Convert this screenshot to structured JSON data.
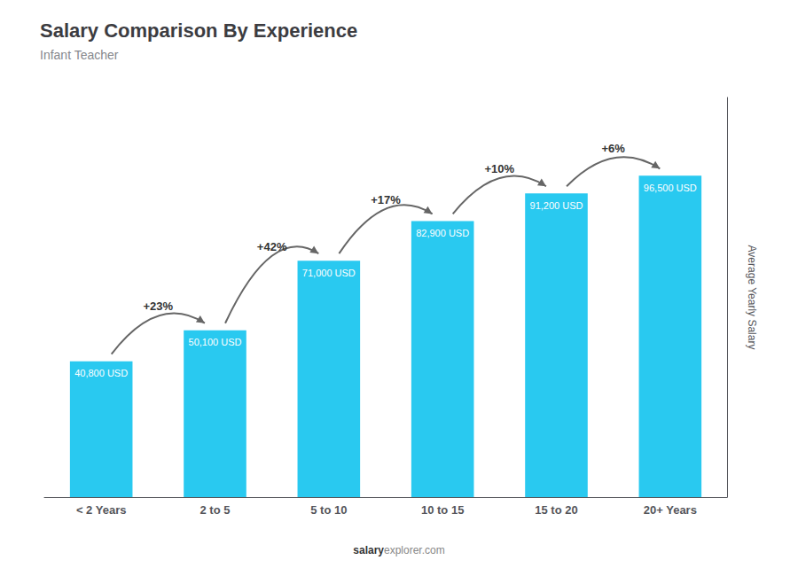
{
  "chart_data": {
    "type": "bar",
    "title": "Salary Comparison By Experience",
    "subtitle": "Infant Teacher",
    "categories": [
      "< 2 Years",
      "2 to 5",
      "5 to 10",
      "10 to 15",
      "15 to 20",
      "20+ Years"
    ],
    "values": [
      40800,
      50100,
      71000,
      82900,
      91200,
      96500
    ],
    "value_labels": [
      "40,800 USD",
      "50,100 USD",
      "71,000 USD",
      "82,900 USD",
      "91,200 USD",
      "96,500 USD"
    ],
    "data_labels": true,
    "annotations": [
      "+23%",
      "+42%",
      "+17%",
      "+10%",
      "+6%"
    ],
    "ylabel": "Average Yearly Salary",
    "watermark": "salaryexplorer.com",
    "watermark_bold": "salary",
    "color": "#29c9f0",
    "ylim": [
      0,
      120000
    ],
    "grid": false,
    "tick_labels": "x"
  }
}
